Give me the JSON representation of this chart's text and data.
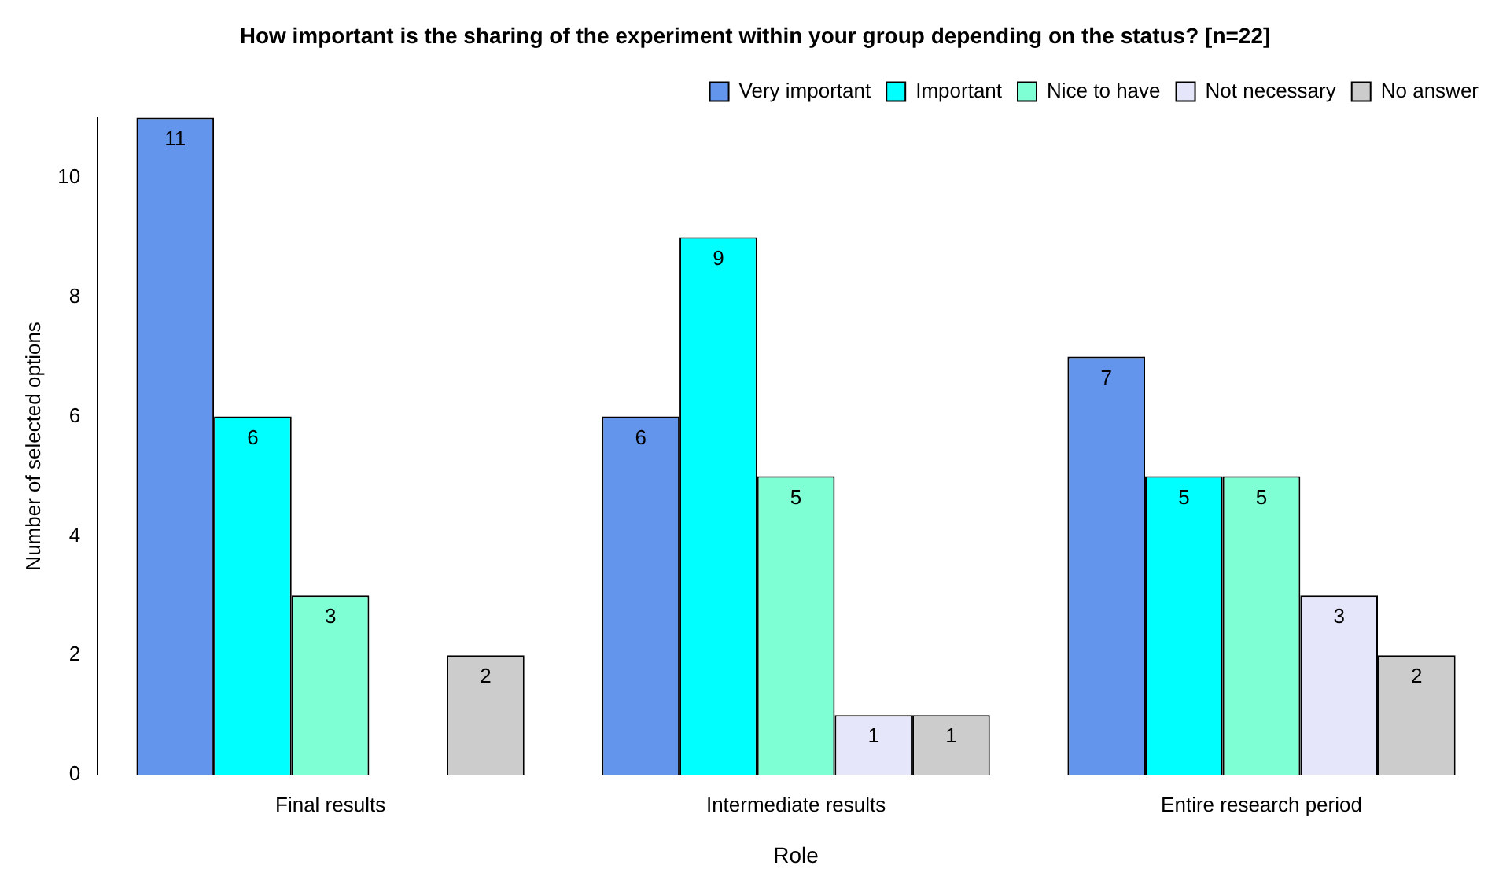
{
  "chart_data": {
    "type": "bar",
    "title": "How important is the sharing of the experiment within your group depending on the status? [n=22]",
    "xlabel": "Role",
    "ylabel": "Number of selected options",
    "categories": [
      "Final results",
      "Intermediate results",
      "Entire research period"
    ],
    "series": [
      {
        "name": "Very important",
        "color": "#6495ed",
        "values": [
          11,
          6,
          7
        ],
        "value_labels": [
          "11",
          "6",
          "7"
        ]
      },
      {
        "name": "Important",
        "color": "#00ffff",
        "values": [
          6,
          9,
          5
        ],
        "value_labels": [
          "6",
          "9",
          "5"
        ]
      },
      {
        "name": "Nice to have",
        "color": "#7fffd4",
        "values": [
          3,
          5,
          5
        ],
        "value_labels": [
          "3",
          "5",
          "5"
        ]
      },
      {
        "name": "Not necessary",
        "color": "#e6e6fa",
        "values": [
          0,
          1,
          3
        ],
        "value_labels": [
          null,
          "1",
          "3"
        ]
      },
      {
        "name": "No answer",
        "color": "#cccccc",
        "values": [
          2,
          1,
          2
        ],
        "value_labels": [
          "2",
          "1",
          "2"
        ]
      }
    ],
    "ylim": [
      0,
      11
    ],
    "yticks": [
      0,
      2,
      4,
      6,
      8,
      10
    ],
    "grid": false,
    "legend": "top right"
  }
}
